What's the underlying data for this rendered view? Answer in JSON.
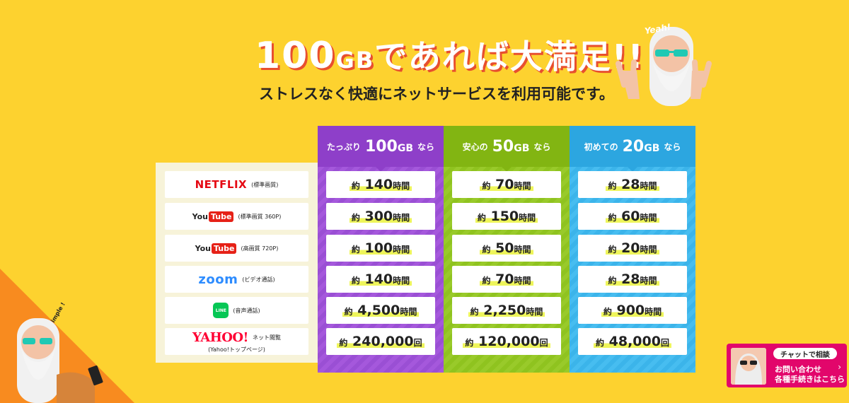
{
  "heading": {
    "title_num": "100",
    "title_gb": "GB",
    "title_rest": "であれば大満足!!",
    "subtitle": "ストレスなく快適にネットサービスを利用可能です。",
    "yeah": "Yeah!"
  },
  "services": [
    {
      "logo": "NETFLIX",
      "note": "(標準画質)"
    },
    {
      "logo_a": "You",
      "logo_b": "Tube",
      "note": "(標準画質 360P)"
    },
    {
      "logo_a": "You",
      "logo_b": "Tube",
      "note": "(高画質 720P)"
    },
    {
      "logo": "zoom",
      "note": "(ビデオ通話)"
    },
    {
      "logo": "LINE",
      "note": "(音声通話)"
    },
    {
      "logo": "YAHOO!",
      "note": "ネット閲覧",
      "note2": "(Yahoo!トップページ)"
    }
  ],
  "plans": [
    {
      "pre": "たっぷり",
      "amount": "100",
      "unit": "GB",
      "post": "なら",
      "color": "#9a4fd4",
      "rows": [
        {
          "pre": "約",
          "num": "140",
          "unit": "時間"
        },
        {
          "pre": "約",
          "num": "300",
          "unit": "時間"
        },
        {
          "pre": "約",
          "num": "100",
          "unit": "時間"
        },
        {
          "pre": "約",
          "num": "140",
          "unit": "時間"
        },
        {
          "pre": "約",
          "num": "4,500",
          "unit": "時間"
        },
        {
          "pre": "約",
          "num": "240,000",
          "unit": "回"
        }
      ]
    },
    {
      "pre": "安心の",
      "amount": "50",
      "unit": "GB",
      "post": "なら",
      "color": "#8fc31f",
      "rows": [
        {
          "pre": "約",
          "num": "70",
          "unit": "時間"
        },
        {
          "pre": "約",
          "num": "150",
          "unit": "時間"
        },
        {
          "pre": "約",
          "num": "50",
          "unit": "時間"
        },
        {
          "pre": "約",
          "num": "70",
          "unit": "時間"
        },
        {
          "pre": "約",
          "num": "2,250",
          "unit": "時間"
        },
        {
          "pre": "約",
          "num": "120,000",
          "unit": "回"
        }
      ]
    },
    {
      "pre": "初めての",
      "amount": "20",
      "unit": "GB",
      "post": "なら",
      "color": "#3bb4ea",
      "rows": [
        {
          "pre": "約",
          "num": "28",
          "unit": "時間"
        },
        {
          "pre": "約",
          "num": "60",
          "unit": "時間"
        },
        {
          "pre": "約",
          "num": "20",
          "unit": "時間"
        },
        {
          "pre": "約",
          "num": "28",
          "unit": "時間"
        },
        {
          "pre": "約",
          "num": "900",
          "unit": "時間"
        },
        {
          "pre": "約",
          "num": "48,000",
          "unit": "回"
        }
      ]
    }
  ],
  "simple_label": "Simple !",
  "chat": {
    "tag": "チャットで相談",
    "line1": "お問い合わせ",
    "line2": "各種手続きはこちら",
    "arrow": "›"
  }
}
